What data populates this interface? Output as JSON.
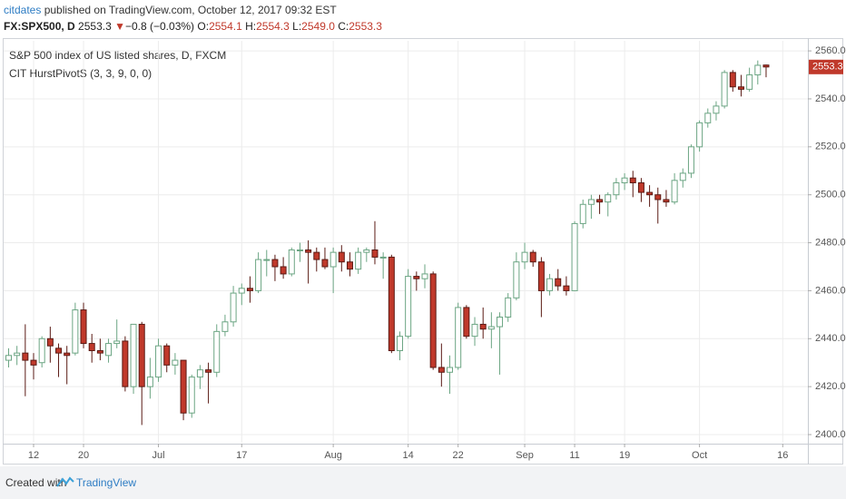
{
  "header": {
    "author": "citdates",
    "published": "published on TradingView.com, October 12, 2017 09:32 EST",
    "symbol": "FX:SPX500, D",
    "last": "2553.3",
    "arrow": "▼",
    "change": "−0.8 (−0.03%)",
    "ohlc_labels": [
      "O:",
      "H:",
      "L:",
      "C:"
    ],
    "ohlc_values": [
      "2554.1",
      "2554.3",
      "2549.0",
      "2553.3"
    ]
  },
  "footer": {
    "created": "Created with",
    "brand": "TradingView"
  },
  "chart_data": {
    "type": "candlestick",
    "legend": [
      "S&P 500 index of US listed shares, D, FXCM",
      "CIT HurstPivotS (3, 3, 9, 0, 0)"
    ],
    "up_color": "#6ba583",
    "down_color": "#c0392b",
    "grid": true,
    "ylim": [
      2396.6,
      2564.2
    ],
    "yticks": [
      {
        "value": 2400,
        "label": "2400.0"
      },
      {
        "value": 2420,
        "label": "2420.0"
      },
      {
        "value": 2440,
        "label": "2440.0"
      },
      {
        "value": 2460,
        "label": "2460.0"
      },
      {
        "value": 2480,
        "label": "2480.0"
      },
      {
        "value": 2500,
        "label": "2500.0"
      },
      {
        "value": 2520,
        "label": "2520.0"
      },
      {
        "value": 2540,
        "label": "2540.0"
      },
      {
        "value": 2560,
        "label": "2560.0"
      }
    ],
    "categories": [
      null,
      null,
      null,
      "12",
      null,
      null,
      null,
      null,
      null,
      "20",
      null,
      null,
      null,
      null,
      null,
      null,
      null,
      null,
      "Jul",
      null,
      null,
      null,
      null,
      null,
      null,
      null,
      null,
      null,
      "17",
      null,
      null,
      null,
      null,
      null,
      null,
      null,
      null,
      null,
      null,
      "Aug",
      null,
      null,
      null,
      null,
      null,
      null,
      null,
      null,
      "14",
      null,
      null,
      null,
      null,
      null,
      "22",
      null,
      null,
      null,
      null,
      null,
      null,
      null,
      "Sep",
      null,
      null,
      null,
      null,
      null,
      "11",
      null,
      null,
      null,
      null,
      null,
      "19",
      null,
      null,
      null,
      null,
      null,
      null,
      null,
      null,
      "Oct",
      null,
      null,
      null,
      null,
      null,
      null,
      null,
      null,
      null,
      "16"
    ],
    "ohlc": [
      [
        2431,
        2436,
        2428,
        2433
      ],
      [
        2433,
        2437,
        2429,
        2434
      ],
      [
        2434,
        2446,
        2416,
        2431
      ],
      [
        2431,
        2434,
        2423,
        2429
      ],
      [
        2430,
        2441,
        2428,
        2440
      ],
      [
        2440,
        2445,
        2430,
        2437
      ],
      [
        2436,
        2438,
        2424,
        2434
      ],
      [
        2434,
        2437,
        2421,
        2433
      ],
      [
        2434,
        2455,
        2433,
        2452
      ],
      [
        2452,
        2455,
        2436,
        2438
      ],
      [
        2438,
        2442,
        2430,
        2435
      ],
      [
        2435,
        2440,
        2431,
        2434
      ],
      [
        2433,
        2440,
        2430,
        2438
      ],
      [
        2438,
        2448,
        2436,
        2439
      ],
      [
        2439,
        2441,
        2418,
        2420
      ],
      [
        2420,
        2446,
        2417,
        2446
      ],
      [
        2446,
        2447,
        2404,
        2420
      ],
      [
        2420,
        2432,
        2415,
        2424
      ],
      [
        2424,
        2440,
        2422,
        2437
      ],
      [
        2437,
        2438,
        2426,
        2429
      ],
      [
        2429,
        2434,
        2425,
        2431
      ],
      [
        2431,
        2431,
        2406,
        2409
      ],
      [
        2409,
        2425,
        2407,
        2424
      ],
      [
        2424,
        2429,
        2419,
        2427
      ],
      [
        2427,
        2430,
        2413,
        2426
      ],
      [
        2426,
        2446,
        2424,
        2443
      ],
      [
        2443,
        2450,
        2441,
        2447
      ],
      [
        2447,
        2462,
        2445,
        2459
      ],
      [
        2459,
        2463,
        2454,
        2461
      ],
      [
        2461,
        2466,
        2455,
        2460
      ],
      [
        2460,
        2476,
        2459,
        2473
      ],
      [
        2473,
        2477,
        2466,
        2473
      ],
      [
        2473,
        2475,
        2464,
        2470
      ],
      [
        2470,
        2474,
        2465,
        2467
      ],
      [
        2467,
        2478,
        2466,
        2477
      ],
      [
        2477,
        2480,
        2472,
        2477
      ],
      [
        2477,
        2481,
        2463,
        2476
      ],
      [
        2476,
        2478,
        2468,
        2473
      ],
      [
        2473,
        2478,
        2469,
        2470
      ],
      [
        2470,
        2478,
        2459,
        2476
      ],
      [
        2476,
        2479,
        2468,
        2472
      ],
      [
        2472,
        2476,
        2466,
        2469
      ],
      [
        2469,
        2478,
        2467,
        2476
      ],
      [
        2476,
        2478,
        2472,
        2477
      ],
      [
        2477,
        2489,
        2471,
        2474
      ],
      [
        2474,
        2476,
        2465,
        2474
      ],
      [
        2474,
        2475,
        2434,
        2435
      ],
      [
        2435,
        2443,
        2431,
        2441
      ],
      [
        2441,
        2469,
        2440,
        2466
      ],
      [
        2466,
        2468,
        2460,
        2465
      ],
      [
        2465,
        2471,
        2461,
        2467
      ],
      [
        2467,
        2468,
        2427,
        2428
      ],
      [
        2428,
        2438,
        2420,
        2426
      ],
      [
        2426,
        2433,
        2417,
        2428
      ],
      [
        2428,
        2455,
        2427,
        2453
      ],
      [
        2453,
        2454,
        2440,
        2441
      ],
      [
        2441,
        2449,
        2437,
        2446
      ],
      [
        2446,
        2453,
        2440,
        2444
      ],
      [
        2444,
        2451,
        2436,
        2445
      ],
      [
        2445,
        2451,
        2425,
        2449
      ],
      [
        2449,
        2459,
        2447,
        2457
      ],
      [
        2457,
        2476,
        2456,
        2472
      ],
      [
        2472,
        2480,
        2469,
        2476
      ],
      [
        2476,
        2477,
        2470,
        2472
      ],
      [
        2472,
        2474,
        2449,
        2460
      ],
      [
        2460,
        2467,
        2458,
        2465
      ],
      [
        2465,
        2469,
        2460,
        2462
      ],
      [
        2462,
        2466,
        2458,
        2460
      ],
      [
        2460,
        2489,
        2460,
        2488
      ],
      [
        2488,
        2498,
        2486,
        2496
      ],
      [
        2496,
        2500,
        2490,
        2498
      ],
      [
        2498,
        2500,
        2492,
        2497
      ],
      [
        2497,
        2501,
        2491,
        2500
      ],
      [
        2500,
        2507,
        2498,
        2505
      ],
      [
        2505,
        2509,
        2502,
        2507
      ],
      [
        2507,
        2510,
        2499,
        2505
      ],
      [
        2505,
        2507,
        2497,
        2501
      ],
      [
        2501,
        2504,
        2495,
        2500
      ],
      [
        2500,
        2503,
        2488,
        2498
      ],
      [
        2498,
        2502,
        2495,
        2497
      ],
      [
        2497,
        2509,
        2496,
        2506
      ],
      [
        2506,
        2511,
        2503,
        2509
      ],
      [
        2509,
        2521,
        2507,
        2520
      ],
      [
        2520,
        2531,
        2518,
        2530
      ],
      [
        2530,
        2536,
        2528,
        2534
      ],
      [
        2534,
        2539,
        2531,
        2537
      ],
      [
        2537,
        2552,
        2536,
        2551
      ],
      [
        2551,
        2552,
        2543,
        2545
      ],
      [
        2545,
        2550,
        2541,
        2544
      ],
      [
        2544,
        2553,
        2543,
        2550
      ],
      [
        2550,
        2556,
        2546,
        2554
      ],
      [
        2554.1,
        2554.3,
        2549.0,
        2553.3
      ],
      null,
      null
    ]
  }
}
